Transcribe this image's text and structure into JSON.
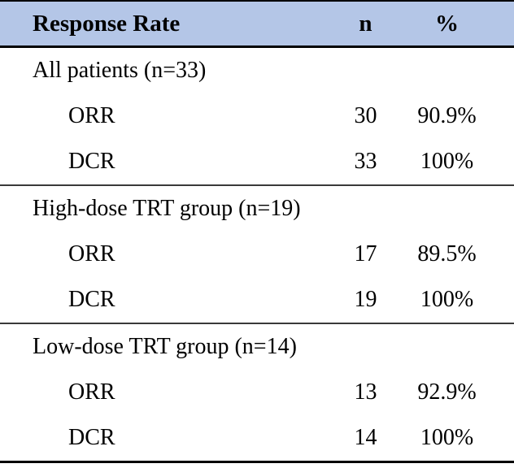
{
  "table": {
    "title": "Response Rate",
    "header": {
      "col_label": "Response Rate",
      "col_n": "n",
      "col_pct": "%"
    },
    "sections": [
      {
        "label": "All patients (n=33)",
        "rows": [
          {
            "label": "ORR",
            "n": "30",
            "pct": "90.9%"
          },
          {
            "label": "DCR",
            "n": "33",
            "pct": "100%"
          }
        ]
      },
      {
        "label": "High-dose TRT group (n=19)",
        "rows": [
          {
            "label": "ORR",
            "n": "17",
            "pct": "89.5%"
          },
          {
            "label": "DCR",
            "n": "19",
            "pct": "100%"
          }
        ]
      },
      {
        "label": "Low-dose TRT group (n=14)",
        "rows": [
          {
            "label": "ORR",
            "n": "13",
            "pct": "92.9%"
          },
          {
            "label": "DCR",
            "n": "14",
            "pct": "100%"
          }
        ]
      }
    ],
    "colors": {
      "header_bg": "#b4c6e7",
      "border": "#000000",
      "separator": "#3a3a3a",
      "text": "#000000"
    }
  },
  "chart_data": {
    "type": "table",
    "title": "Response Rate",
    "columns": [
      "Response Rate",
      "n",
      "%"
    ],
    "rows": [
      [
        "All patients (n=33)",
        "",
        ""
      ],
      [
        "ORR",
        "30",
        "90.9%"
      ],
      [
        "DCR",
        "33",
        "100%"
      ],
      [
        "High-dose TRT group (n=19)",
        "",
        ""
      ],
      [
        "ORR",
        "17",
        "89.5%"
      ],
      [
        "DCR",
        "19",
        "100%"
      ],
      [
        "Low-dose TRT group (n=14)",
        "",
        ""
      ],
      [
        "ORR",
        "13",
        "92.9%"
      ],
      [
        "DCR",
        "14",
        "100%"
      ]
    ]
  }
}
